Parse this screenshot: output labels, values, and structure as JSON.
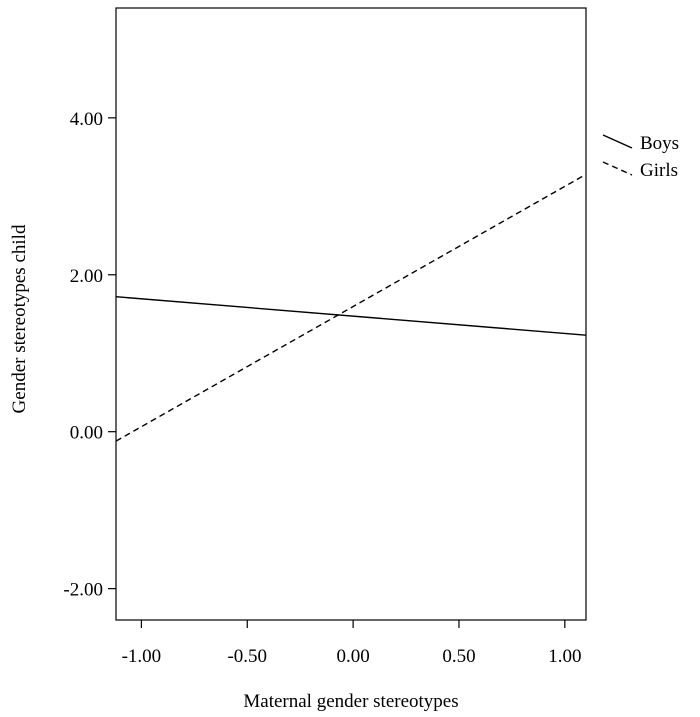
{
  "chart_data": {
    "type": "line",
    "title": "",
    "xlabel": "Maternal gender stereotypes",
    "ylabel": "Gender stereotypes child",
    "xlim": [
      -1.12,
      1.1
    ],
    "ylim": [
      -2.4,
      5.4
    ],
    "xticks": [
      -1.0,
      -0.5,
      0.0,
      0.5,
      1.0
    ],
    "xtick_labels": [
      "-1.00",
      "-0.50",
      "0.00",
      "0.50",
      "1.00"
    ],
    "yticks": [
      -2.0,
      0.0,
      2.0,
      4.0
    ],
    "ytick_labels": [
      "-2.00",
      "0.00",
      "2.00",
      "4.00"
    ],
    "grid": false,
    "legend_position": "right",
    "series": [
      {
        "name": "Boys",
        "style": "solid",
        "color": "#000000",
        "x": [
          -1.12,
          1.1
        ],
        "y": [
          1.72,
          1.23
        ]
      },
      {
        "name": "Girls",
        "style": "dashed",
        "color": "#000000",
        "x": [
          -1.12,
          1.1
        ],
        "y": [
          -0.12,
          3.28
        ]
      }
    ]
  }
}
